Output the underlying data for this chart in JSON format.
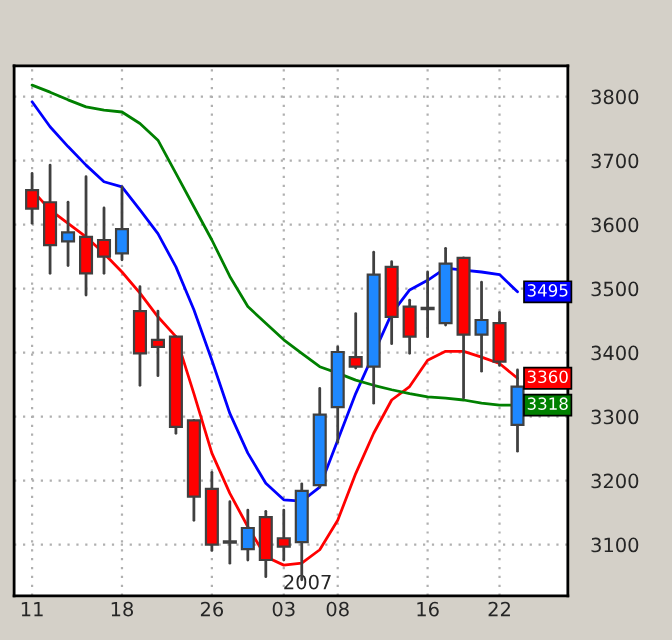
{
  "chart_data": {
    "type": "candlestick",
    "categories": [
      "11",
      null,
      null,
      null,
      null,
      "18",
      null,
      null,
      null,
      null,
      "26",
      null,
      null,
      null,
      "03",
      null,
      null,
      "08",
      null,
      null,
      null,
      null,
      "16",
      null,
      null,
      null,
      "22",
      null
    ],
    "ohlc": [
      [
        3654,
        3680,
        3602,
        3625
      ],
      [
        3635,
        3693,
        3524,
        3568
      ],
      [
        3574,
        3635,
        3536,
        3588
      ],
      [
        3581,
        3675,
        3490,
        3524
      ],
      [
        3576,
        3626,
        3524,
        3550
      ],
      [
        3555,
        3659,
        3545,
        3593
      ],
      [
        3465,
        3503,
        3349,
        3399
      ],
      [
        3420,
        3465,
        3364,
        3409
      ],
      [
        3425,
        3425,
        3274,
        3284
      ],
      [
        3294,
        3294,
        3138,
        3175
      ],
      [
        3187,
        3213,
        3091,
        3100
      ],
      [
        3105,
        3167,
        3071,
        3103
      ],
      [
        3093,
        3154,
        3076,
        3126
      ],
      [
        3143,
        3152,
        3050,
        3076
      ],
      [
        3110,
        3154,
        3076,
        3097
      ],
      [
        3104,
        3195,
        3045,
        3184
      ],
      [
        3193,
        3344,
        3190,
        3303
      ],
      [
        3315,
        3409,
        3260,
        3401
      ],
      [
        3393,
        3461,
        3376,
        3378
      ],
      [
        3378,
        3557,
        3321,
        3522
      ],
      [
        3534,
        3542,
        3414,
        3456
      ],
      [
        3472,
        3482,
        3399,
        3425
      ],
      [
        3470,
        3526,
        3425,
        3468
      ],
      [
        3446,
        3563,
        3443,
        3539
      ],
      [
        3548,
        3548,
        3329,
        3428
      ],
      [
        3428,
        3510,
        3371,
        3451
      ],
      [
        3446,
        3463,
        3380,
        3386
      ],
      [
        3287,
        3373,
        3246,
        3347
      ]
    ],
    "colors": [
      "#ff0000",
      "#ff0000",
      "#1e88ff",
      "#ff0000",
      "#ff0000",
      "#1e88ff",
      "#ff0000",
      "#ff0000",
      "#ff0000",
      "#ff0000",
      "#ff0000",
      "#ff0000",
      "#1e88ff",
      "#ff0000",
      "#ff0000",
      "#1e88ff",
      "#1e88ff",
      "#1e88ff",
      "#ff0000",
      "#1e88ff",
      "#ff0000",
      "#ff0000",
      "#ff0000",
      "#1e88ff",
      "#ff0000",
      "#1e88ff",
      "#ff0000",
      "#1e88ff"
    ],
    "series": [
      {
        "type": "line",
        "color": "#0000ff",
        "values": [
          3792,
          3753,
          3722,
          3693,
          3667,
          3659,
          3623,
          3586,
          3534,
          3467,
          3388,
          3305,
          3243,
          3196,
          3170,
          3168,
          3190,
          3263,
          3336,
          null,
          3461,
          3498,
          3513,
          3532,
          3529,
          3526,
          3522,
          3495
        ],
        "value_labels": [
          null,
          null,
          null,
          null,
          null,
          null,
          null,
          null,
          null,
          null,
          null,
          null,
          null,
          null,
          null,
          null,
          null,
          null,
          null,
          null,
          null,
          null,
          null,
          null,
          null,
          null,
          null,
          "3495"
        ]
      },
      {
        "type": "line",
        "color": "#ff0000",
        "values": [
          3654,
          3623,
          3602,
          3581,
          3555,
          3526,
          3493,
          3456,
          3425,
          3336,
          3243,
          3180,
          3128,
          3081,
          3068,
          3071,
          3092,
          3138,
          3211,
          3274,
          3326,
          3347,
          3388,
          3402,
          3402,
          3393,
          3383,
          3360
        ],
        "value_labels": [
          null,
          null,
          null,
          null,
          null,
          null,
          null,
          null,
          null,
          null,
          null,
          null,
          null,
          null,
          null,
          null,
          null,
          null,
          null,
          null,
          null,
          null,
          null,
          null,
          null,
          null,
          null,
          "3360"
        ]
      },
      {
        "type": "line",
        "color": "#008000",
        "values": [
          3818,
          3807,
          3795,
          3784,
          3779,
          3776,
          3758,
          3732,
          3680,
          3628,
          3576,
          3519,
          3472,
          3446,
          3420,
          3399,
          3378,
          3368,
          3357,
          3349,
          3342,
          3336,
          3331,
          3329,
          3326,
          3321,
          3318,
          3318
        ],
        "value_labels": [
          null,
          null,
          null,
          null,
          null,
          null,
          null,
          null,
          null,
          null,
          null,
          null,
          null,
          null,
          null,
          null,
          null,
          null,
          null,
          null,
          null,
          null,
          null,
          null,
          null,
          null,
          null,
          "3318"
        ]
      }
    ],
    "ylim": [
      3020,
      3848
    ],
    "yticks": [
      3100,
      3200,
      3300,
      3400,
      3500,
      3600,
      3700,
      3800
    ],
    "grid": true,
    "annotations": [
      "2007"
    ]
  }
}
